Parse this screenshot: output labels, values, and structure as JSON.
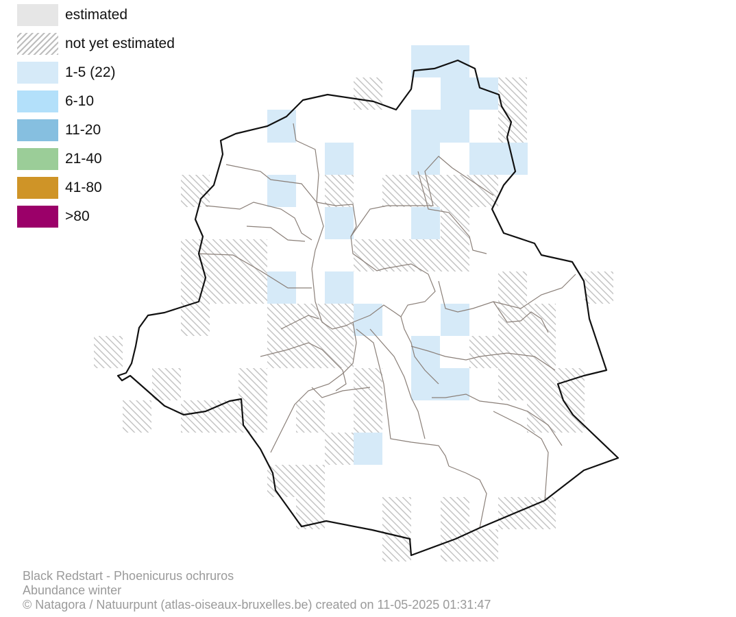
{
  "legend": {
    "items": [
      {
        "label": "estimated",
        "color": "#e6e6e6",
        "pattern": "solid"
      },
      {
        "label": "not yet estimated",
        "color": "#bdbdbd",
        "pattern": "hatch"
      },
      {
        "label": "1-5 (22)",
        "color": "#d6eaf8",
        "pattern": "solid"
      },
      {
        "label": "6-10",
        "color": "#b3e0fa",
        "pattern": "solid"
      },
      {
        "label": "11-20",
        "color": "#86bfe0",
        "pattern": "solid"
      },
      {
        "label": "21-40",
        "color": "#9bcd98",
        "pattern": "solid"
      },
      {
        "label": "41-80",
        "color": "#cf9427",
        "pattern": "solid"
      },
      {
        "label": ">80",
        "color": "#9b0069",
        "pattern": "solid"
      }
    ]
  },
  "caption": {
    "species": "Black Redstart - Phoenicurus ochruros",
    "season": "Abundance winter",
    "credit": "© Natagora / Natuurpunt (atlas-oiseaux-bruxelles.be) created on 11-05-2025 01:31:47"
  },
  "colors": {
    "boundary": "#111111",
    "municipality_lines": "#8a7f78",
    "hatch": "#c4c4c4"
  }
}
